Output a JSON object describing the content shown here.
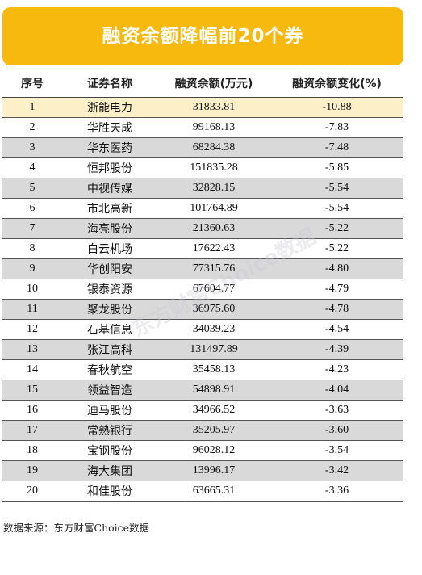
{
  "title": "融资余额降幅前20个券",
  "columns": [
    "序号",
    "证券名称",
    "融资余额(万元)",
    "融资余额变化(%)"
  ],
  "rows": [
    {
      "rank": "1",
      "name": "浙能电力",
      "balance": "31833.81",
      "change": "-10.88"
    },
    {
      "rank": "2",
      "name": "华胜天成",
      "balance": "99168.13",
      "change": "-7.83"
    },
    {
      "rank": "3",
      "name": "华东医药",
      "balance": "68284.38",
      "change": "-7.48"
    },
    {
      "rank": "4",
      "name": "恒邦股份",
      "balance": "151835.28",
      "change": "-5.85"
    },
    {
      "rank": "5",
      "name": "中视传媒",
      "balance": "32828.15",
      "change": "-5.54"
    },
    {
      "rank": "6",
      "name": "市北高新",
      "balance": "101764.89",
      "change": "-5.54"
    },
    {
      "rank": "7",
      "name": "海亮股份",
      "balance": "21360.63",
      "change": "-5.22"
    },
    {
      "rank": "8",
      "name": "白云机场",
      "balance": "17622.43",
      "change": "-5.22"
    },
    {
      "rank": "9",
      "name": "华创阳安",
      "balance": "77315.76",
      "change": "-4.80"
    },
    {
      "rank": "10",
      "name": "银泰资源",
      "balance": "67604.77",
      "change": "-4.79"
    },
    {
      "rank": "11",
      "name": "聚龙股份",
      "balance": "36975.60",
      "change": "-4.78"
    },
    {
      "rank": "12",
      "name": "石基信息",
      "balance": "34039.23",
      "change": "-4.54"
    },
    {
      "rank": "13",
      "name": "张江高科",
      "balance": "131497.89",
      "change": "-4.39"
    },
    {
      "rank": "14",
      "name": "春秋航空",
      "balance": "35458.13",
      "change": "-4.23"
    },
    {
      "rank": "15",
      "name": "领益智造",
      "balance": "54898.91",
      "change": "-4.04"
    },
    {
      "rank": "16",
      "name": "迪马股份",
      "balance": "34966.52",
      "change": "-3.63"
    },
    {
      "rank": "17",
      "name": "常熟银行",
      "balance": "35205.97",
      "change": "-3.60"
    },
    {
      "rank": "18",
      "name": "宝钢股份",
      "balance": "96028.12",
      "change": "-3.54"
    },
    {
      "rank": "19",
      "name": "海大集团",
      "balance": "13996.17",
      "change": "-3.42"
    },
    {
      "rank": "20",
      "name": "和佳股份",
      "balance": "63665.31",
      "change": "-3.36"
    }
  ],
  "footer": "数据来源：东方财富Choice数据",
  "watermark": "东方财富Choice数据",
  "colors": {
    "banner": "#f8b90e",
    "highlight_row": "#fdf0c8",
    "alt_row": "#d9d9d9"
  }
}
